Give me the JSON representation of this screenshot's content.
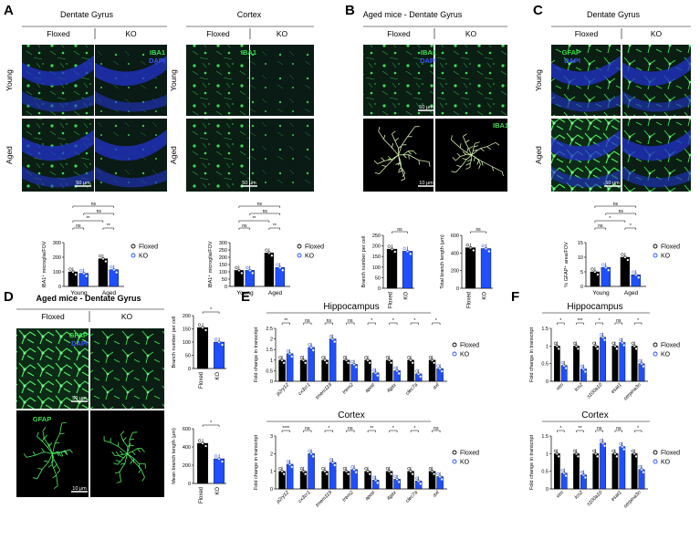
{
  "colors": {
    "floxed": "#000000",
    "ko": "#1f4fff",
    "micro_bg": "#0a1e14",
    "iba1": "#3fdc55",
    "dapi": "#2233cc",
    "gfap": "#38e04c"
  },
  "panelA": {
    "letter": "A",
    "dg_title": "Dentate Gyrus",
    "ctx_title": "Cortex",
    "col_floxed": "Floxed",
    "col_ko": "KO",
    "row_young": "Young",
    "row_aged": "Aged",
    "stain_iba1": "IBA1",
    "stain_dapi": "DAPI",
    "scale": "50 μm"
  },
  "panelB": {
    "letter": "B",
    "title": "Aged mice - Dentate Gyrus",
    "col_floxed": "Floxed",
    "col_ko": "KO",
    "stain_iba1": "IBA1",
    "stain_dapi": "DAPI",
    "scale_top": "50 μm",
    "scale_bottom": "10 μm"
  },
  "panelC": {
    "letter": "C",
    "title": "Dentate Gyrus",
    "col_floxed": "Floxed",
    "col_ko": "KO",
    "row_young": "Young",
    "row_aged": "Aged",
    "stain_gfap": "GFAP",
    "stain_dapi": "DAPI",
    "scale": "50 μm"
  },
  "panelD": {
    "letter": "D",
    "title": "Aged mice - Dentate Gyrus",
    "col_floxed": "Floxed",
    "col_ko": "KO",
    "stain_gfap": "GFAP",
    "stain_dapi": "DAPI",
    "scale_top": "50 μm",
    "scale_bottom": "10 μm"
  },
  "panelE": {
    "letter": "E",
    "title_top": "Hippocampus",
    "title_bottom": "Cortex"
  },
  "panelF": {
    "letter": "F",
    "title_top": "Hippocampus",
    "title_bottom": "Cortex"
  },
  "chart_data": [
    {
      "id": "A_dg",
      "type": "bar",
      "ylabel": "IBA1⁺ microglia/FOV",
      "groups": [
        "Young",
        "Aged"
      ],
      "series": [
        {
          "name": "Floxed",
          "values": [
            100,
            190
          ]
        },
        {
          "name": "KO",
          "values": [
            90,
            115
          ]
        }
      ],
      "ylim": [
        0,
        300
      ],
      "yticks": [
        0,
        100,
        200,
        300
      ],
      "legend": [
        "Floxed",
        "KO"
      ],
      "sig": [
        "ns",
        "ns",
        "**",
        "**",
        "ns",
        "ns"
      ]
    },
    {
      "id": "A_ctx",
      "type": "bar",
      "ylabel": "IBA1⁺ microglia/FOV",
      "groups": [
        "Young",
        "Aged"
      ],
      "series": [
        {
          "name": "Floxed",
          "values": [
            110,
            230
          ]
        },
        {
          "name": "KO",
          "values": [
            110,
            130
          ]
        }
      ],
      "ylim": [
        0,
        300
      ],
      "yticks": [
        0,
        50,
        100,
        150,
        200,
        250,
        300
      ],
      "legend": [
        "Floxed",
        "KO"
      ],
      "sig": [
        "ns",
        "ns",
        "**",
        "**",
        "ns",
        "ns"
      ]
    },
    {
      "id": "B_branch",
      "type": "bar",
      "ylabel": "Branch number per cell",
      "categories": [
        "Floxed",
        "KO"
      ],
      "values": [
        185,
        175
      ],
      "ylim": [
        0,
        250
      ],
      "yticks": [
        0,
        50,
        100,
        150,
        200,
        250
      ],
      "sig": [
        "ns"
      ]
    },
    {
      "id": "B_length",
      "type": "bar",
      "ylabel": "Total branch length (μm)",
      "categories": [
        "Floxed",
        "KO"
      ],
      "values": [
        460,
        450
      ],
      "ylim": [
        0,
        600
      ],
      "yticks": [
        0,
        200,
        400,
        600
      ],
      "sig": [
        "ns"
      ]
    },
    {
      "id": "C_gfap",
      "type": "bar",
      "ylabel": "% GFAP⁺ area/FOV",
      "groups": [
        "Young",
        "Aged"
      ],
      "series": [
        {
          "name": "Floxed",
          "values": [
            5,
            10
          ]
        },
        {
          "name": "KO",
          "values": [
            6.5,
            4
          ]
        }
      ],
      "ylim": [
        0,
        15
      ],
      "yticks": [
        0,
        5,
        10,
        15
      ],
      "legend": [
        "Floxed",
        "KO"
      ],
      "sig": [
        "ns",
        "ns",
        "*",
        "*",
        "ns",
        "ns"
      ]
    },
    {
      "id": "D_branch",
      "type": "bar",
      "ylabel": "Branch number per cell",
      "categories": [
        "Floxed",
        "KO"
      ],
      "values": [
        155,
        100
      ],
      "ylim": [
        0,
        200
      ],
      "yticks": [
        0,
        50,
        100,
        150,
        200
      ],
      "sig": [
        "*"
      ]
    },
    {
      "id": "D_length",
      "type": "bar",
      "ylabel": "Mean branch length (μm)",
      "categories": [
        "Floxed",
        "KO"
      ],
      "values": [
        440,
        270
      ],
      "ylim": [
        0,
        600
      ],
      "yticks": [
        0,
        200,
        400,
        600
      ],
      "sig": [
        "*"
      ]
    },
    {
      "id": "E_hippo",
      "type": "bar",
      "ylabel": "Fold change in transcript",
      "genes": [
        "p2ry12",
        "cx3cr1",
        "tmem119",
        "trem2",
        "apoe",
        "itgax",
        "clec7a",
        "axl"
      ],
      "series": [
        {
          "name": "Floxed",
          "values": [
            1,
            1,
            1,
            1,
            1,
            1,
            1,
            1
          ]
        },
        {
          "name": "KO",
          "values": [
            1.3,
            1.6,
            2.0,
            0.8,
            0.4,
            0.5,
            0.35,
            0.6
          ]
        }
      ],
      "ylim": [
        0,
        2.5
      ],
      "yticks": [
        0,
        0.5,
        1.0,
        1.5,
        2.0,
        2.5
      ],
      "legend": [
        "Floxed",
        "KO"
      ],
      "sig": [
        "**",
        "ns",
        "ns",
        "ns",
        "*",
        "*",
        "*",
        "*"
      ]
    },
    {
      "id": "E_ctx",
      "type": "bar",
      "ylabel": "Fold change in transcript",
      "genes": [
        "p2ry12",
        "cx3cr1",
        "tmem119",
        "trem2",
        "apoe",
        "itgax",
        "clec7a",
        "axl"
      ],
      "series": [
        {
          "name": "Floxed",
          "values": [
            1,
            1,
            1,
            1,
            1,
            1,
            1,
            1
          ]
        },
        {
          "name": "KO",
          "values": [
            1.4,
            2.0,
            1.5,
            1.1,
            0.5,
            0.55,
            0.45,
            0.7
          ]
        }
      ],
      "ylim": [
        0,
        3
      ],
      "yticks": [
        0,
        1,
        2,
        3
      ],
      "legend": [
        "Floxed",
        "KO"
      ],
      "sig": [
        "****",
        "ns",
        "*",
        "ns",
        "**",
        "*",
        "*",
        "ns"
      ]
    },
    {
      "id": "F_hippo",
      "type": "bar",
      "ylabel": "Fold change in transcript",
      "genes": [
        "vim",
        "lcn2",
        "s100a10",
        "esat1",
        "serpina3n"
      ],
      "series": [
        {
          "name": "Floxed",
          "values": [
            1,
            1,
            1,
            1,
            1
          ]
        },
        {
          "name": "KO",
          "values": [
            0.45,
            0.35,
            1.25,
            1.1,
            0.5
          ]
        }
      ],
      "ylim": [
        0,
        1.5
      ],
      "yticks": [
        0,
        0.5,
        1.0,
        1.5
      ],
      "legend": [
        "Floxed",
        "KO"
      ],
      "sig": [
        "*",
        "***",
        "*",
        "ns",
        "*"
      ]
    },
    {
      "id": "F_ctx",
      "type": "bar",
      "ylabel": "Fold change in transcript",
      "genes": [
        "vim",
        "lcn2",
        "s100a10",
        "esat1",
        "serpina3n"
      ],
      "series": [
        {
          "name": "Floxed",
          "values": [
            1,
            1,
            1,
            1,
            1
          ]
        },
        {
          "name": "KO",
          "values": [
            0.45,
            0.4,
            1.3,
            1.2,
            0.55
          ]
        }
      ],
      "ylim": [
        0,
        1.5
      ],
      "yticks": [
        0,
        0.5,
        1.0,
        1.5
      ],
      "legend": [
        "Floxed",
        "KO"
      ],
      "sig": [
        "*",
        "**",
        "ns",
        "ns",
        "*"
      ]
    }
  ]
}
